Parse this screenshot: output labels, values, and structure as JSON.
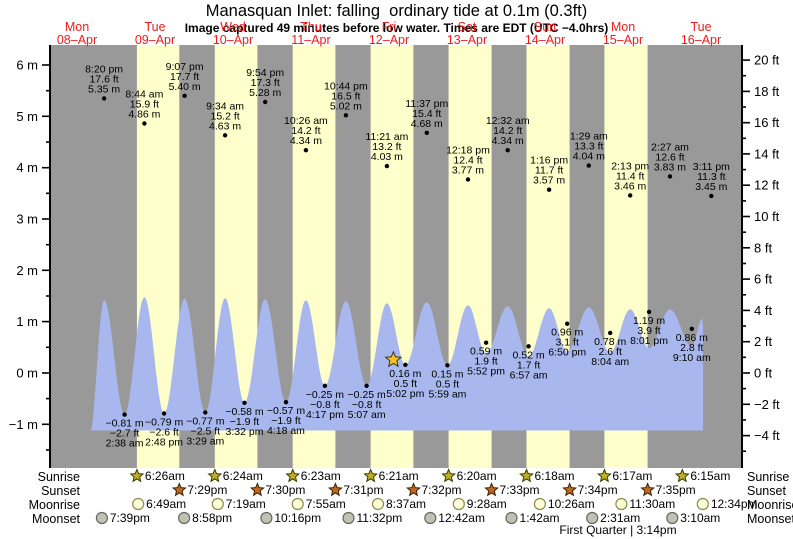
{
  "title": "Manasquan Inlet: falling  ordinary tide at 0.1m (0.3ft)",
  "subtitle": "Image captured 49 minutes before low water. Times are EDT (UTC −4.0hrs)",
  "colors": {
    "night_band": "#999999",
    "day_band": "#ffffcc",
    "tide_fill": "#a8b8ee",
    "day_label_red": "#ee1c1c",
    "axis_black": "#000000",
    "sunrise_star_fill": "#bfae2a",
    "sunset_star_fill": "#bf6a1f",
    "moonrise_fill": "#ffffd8",
    "moonrise_stroke": "#8a8a50",
    "moonset_fill": "#c2c2b2",
    "moonset_stroke": "#666666",
    "current_star_fill": "#f5c518"
  },
  "days": [
    {
      "weekday": "Mon",
      "date": "08–Apr"
    },
    {
      "weekday": "Tue",
      "date": "09–Apr"
    },
    {
      "weekday": "Wed",
      "date": "10–Apr"
    },
    {
      "weekday": "Thu",
      "date": "11–Apr"
    },
    {
      "weekday": "Fri",
      "date": "12–Apr"
    },
    {
      "weekday": "Sat",
      "date": "13–Apr"
    },
    {
      "weekday": "Sun",
      "date": "14–Apr"
    },
    {
      "weekday": "Mon",
      "date": "15–Apr"
    },
    {
      "weekday": "Tue",
      "date": "16–Apr"
    }
  ],
  "y_axis_left": {
    "unit": "m",
    "labels": [
      "6 m",
      "5 m",
      "4 m",
      "3 m",
      "2 m",
      "1 m",
      "0 m",
      "−1 m"
    ]
  },
  "y_axis_right": {
    "unit": "ft",
    "labels": [
      "20 ft",
      "18 ft",
      "16 ft",
      "14 ft",
      "12 ft",
      "10 ft",
      "8 ft",
      "6 ft",
      "4 ft",
      "2 ft",
      "0 ft",
      "−2 ft",
      "−4 ft"
    ]
  },
  "chart_data": {
    "type": "area",
    "title": "Manasquan Inlet: falling  ordinary tide at 0.1m (0.3ft)",
    "x_categories": [
      "Mon 08-Apr",
      "Tue 09-Apr",
      "Wed 10-Apr",
      "Thu 11-Apr",
      "Fri 12-Apr",
      "Sat 13-Apr",
      "Sun 14-Apr",
      "Mon 15-Apr",
      "Tue 16-Apr"
    ],
    "ylabel_left": "meters",
    "ylabel_right": "feet",
    "ylim_m": [
      -1.8,
      6.4
    ],
    "grid": false,
    "high_tides": [
      {
        "day": 0,
        "time": "8:20 pm",
        "ft": "17.6 ft",
        "m": "5.35 m",
        "value_m": 5.35
      },
      {
        "day": 1,
        "time": "8:44 am",
        "ft": "15.9 ft",
        "m": "4.86 m",
        "value_m": 4.86
      },
      {
        "day": 1,
        "time": "9:07 pm",
        "ft": "17.7 ft",
        "m": "5.40 m",
        "value_m": 5.4
      },
      {
        "day": 2,
        "time": "9:34 am",
        "ft": "15.2 ft",
        "m": "4.63 m",
        "value_m": 4.63
      },
      {
        "day": 2,
        "time": "9:54 pm",
        "ft": "17.3 ft",
        "m": "5.28 m",
        "value_m": 5.28
      },
      {
        "day": 3,
        "time": "10:26 am",
        "ft": "14.2 ft",
        "m": "4.34 m",
        "value_m": 4.34
      },
      {
        "day": 3,
        "time": "10:44 pm",
        "ft": "16.5 ft",
        "m": "5.02 m",
        "value_m": 5.02
      },
      {
        "day": 4,
        "time": "11:21 am",
        "ft": "13.2 ft",
        "m": "4.03 m",
        "value_m": 4.03
      },
      {
        "day": 4,
        "time": "11:37 pm",
        "ft": "15.4 ft",
        "m": "4.68 m",
        "value_m": 4.68
      },
      {
        "day": 5,
        "time": "12:18 pm",
        "ft": "12.4 ft",
        "m": "3.77 m",
        "value_m": 3.77
      },
      {
        "day": 6,
        "time": "12:32 am",
        "ft": "14.2 ft",
        "m": "4.34 m",
        "value_m": 4.34
      },
      {
        "day": 6,
        "time": "1:16 pm",
        "ft": "11.7 ft",
        "m": "3.57 m",
        "value_m": 3.57
      },
      {
        "day": 7,
        "time": "1:29 am",
        "ft": "13.3 ft",
        "m": "4.04 m",
        "value_m": 4.04
      },
      {
        "day": 7,
        "time": "2:13 pm",
        "ft": "11.4 ft",
        "m": "3.46 m",
        "value_m": 3.46
      },
      {
        "day": 8,
        "time": "2:27 am",
        "ft": "12.6 ft",
        "m": "3.83 m",
        "value_m": 3.83
      },
      {
        "day": 8,
        "time": "3:11 pm",
        "ft": "11.3 ft",
        "m": "3.45 m",
        "value_m": 3.45
      }
    ],
    "low_tides": [
      {
        "day": 1,
        "time": "2:38 am",
        "ft": "−2.7 ft",
        "m": "−0.81 m",
        "value_m": -0.81,
        "current": false
      },
      {
        "day": 1,
        "time": "2:48 pm",
        "ft": "−2.6 ft",
        "m": "−0.79 m",
        "value_m": -0.79,
        "current": false
      },
      {
        "day": 2,
        "time": "3:29 am",
        "ft": "−2.5 ft",
        "m": "−0.77 m",
        "value_m": -0.77,
        "current": false
      },
      {
        "day": 2,
        "time": "3:32 pm",
        "ft": "−1.9 ft",
        "m": "−0.58 m",
        "value_m": -0.58,
        "current": false
      },
      {
        "day": 3,
        "time": "4:18 am",
        "ft": "−1.9 ft",
        "m": "−0.57 m",
        "value_m": -0.57,
        "current": false
      },
      {
        "day": 3,
        "time": "4:17 pm",
        "ft": "−0.8 ft",
        "m": "−0.25 m",
        "value_m": -0.25,
        "current": false
      },
      {
        "day": 4,
        "time": "5:07 am",
        "ft": "−0.8 ft",
        "m": "−0.25 m",
        "value_m": -0.25,
        "current": false
      },
      {
        "day": 4,
        "time": "5:02 pm",
        "ft": "0.5 ft",
        "m": "0.16 m",
        "value_m": 0.16,
        "current": true
      },
      {
        "day": 5,
        "time": "5:59 am",
        "ft": "0.5 ft",
        "m": "0.15 m",
        "value_m": 0.15,
        "current": false
      },
      {
        "day": 5,
        "time": "5:52 pm",
        "ft": "1.9 ft",
        "m": "0.59 m",
        "value_m": 0.59,
        "current": false
      },
      {
        "day": 6,
        "time": "6:57 am",
        "ft": "1.7 ft",
        "m": "0.52 m",
        "value_m": 0.52,
        "current": false
      },
      {
        "day": 6,
        "time": "6:50 pm",
        "ft": "3.1 ft",
        "m": "0.96 m",
        "value_m": 0.96,
        "current": false
      },
      {
        "day": 7,
        "time": "8:04 am",
        "ft": "2.6 ft",
        "m": "0.78 m",
        "value_m": 0.78,
        "current": false
      },
      {
        "day": 7,
        "time": "8:01 pm",
        "ft": "3.9 ft",
        "m": "1.19 m",
        "value_m": 1.19,
        "current": false
      },
      {
        "day": 8,
        "time": "9:10 am",
        "ft": "2.8 ft",
        "m": "0.86 m",
        "value_m": 0.86,
        "current": false
      }
    ],
    "curve_extremes": [
      {
        "day": 0,
        "h": 15.9,
        "v": -1.2
      },
      {
        "day": 0,
        "h": 20.33,
        "v": 1.42
      },
      {
        "day": 1,
        "h": 2.63,
        "v": -0.81
      },
      {
        "day": 1,
        "h": 8.73,
        "v": 1.48
      },
      {
        "day": 1,
        "h": 14.8,
        "v": -0.79
      },
      {
        "day": 1,
        "h": 21.12,
        "v": 1.45
      },
      {
        "day": 2,
        "h": 3.48,
        "v": -0.77
      },
      {
        "day": 2,
        "h": 9.57,
        "v": 1.46
      },
      {
        "day": 2,
        "h": 15.53,
        "v": -0.58
      },
      {
        "day": 2,
        "h": 21.9,
        "v": 1.44
      },
      {
        "day": 3,
        "h": 4.3,
        "v": -0.57
      },
      {
        "day": 3,
        "h": 10.43,
        "v": 1.42
      },
      {
        "day": 3,
        "h": 16.28,
        "v": -0.25
      },
      {
        "day": 3,
        "h": 22.73,
        "v": 1.4
      },
      {
        "day": 4,
        "h": 5.12,
        "v": -0.25
      },
      {
        "day": 4,
        "h": 11.35,
        "v": 1.36
      },
      {
        "day": 4,
        "h": 17.03,
        "v": 0.16
      },
      {
        "day": 4,
        "h": 23.62,
        "v": 1.38
      },
      {
        "day": 5,
        "h": 5.98,
        "v": 0.15
      },
      {
        "day": 5,
        "h": 12.3,
        "v": 1.32
      },
      {
        "day": 5,
        "h": 17.87,
        "v": 0.38
      },
      {
        "day": 6,
        "h": 0.53,
        "v": 1.3
      },
      {
        "day": 6,
        "h": 6.95,
        "v": 0.32
      },
      {
        "day": 6,
        "h": 13.27,
        "v": 1.26
      },
      {
        "day": 6,
        "h": 18.83,
        "v": 0.42
      },
      {
        "day": 7,
        "h": 1.48,
        "v": 1.28
      },
      {
        "day": 7,
        "h": 8.07,
        "v": 0.4
      },
      {
        "day": 7,
        "h": 14.22,
        "v": 1.24
      },
      {
        "day": 7,
        "h": 20.02,
        "v": 0.48
      },
      {
        "day": 8,
        "h": 2.45,
        "v": 1.24
      },
      {
        "day": 8,
        "h": 9.17,
        "v": 0.52
      },
      {
        "day": 8,
        "h": 12.3,
        "v": 1.05
      },
      {
        "day": 8,
        "h": 12.66,
        "v": 0.92
      }
    ]
  },
  "astro": {
    "row_labels": [
      "Sunrise",
      "Sunset",
      "Moonrise",
      "Moonset"
    ],
    "sunrise": [
      {
        "day": 1,
        "time": "6:26am"
      },
      {
        "day": 2,
        "time": "6:24am"
      },
      {
        "day": 3,
        "time": "6:23am"
      },
      {
        "day": 4,
        "time": "6:21am"
      },
      {
        "day": 5,
        "time": "6:20am"
      },
      {
        "day": 6,
        "time": "6:18am"
      },
      {
        "day": 7,
        "time": "6:17am"
      },
      {
        "day": 8,
        "time": "6:15am"
      }
    ],
    "sunset": [
      {
        "day": 1,
        "time": "7:29pm"
      },
      {
        "day": 2,
        "time": "7:30pm"
      },
      {
        "day": 3,
        "time": "7:31pm"
      },
      {
        "day": 4,
        "time": "7:32pm"
      },
      {
        "day": 5,
        "time": "7:33pm"
      },
      {
        "day": 6,
        "time": "7:34pm"
      },
      {
        "day": 7,
        "time": "7:35pm"
      }
    ],
    "moonrise": [
      {
        "day": 1,
        "time": "6:49am"
      },
      {
        "day": 2,
        "time": "7:19am"
      },
      {
        "day": 3,
        "time": "7:55am"
      },
      {
        "day": 4,
        "time": "8:37am"
      },
      {
        "day": 5,
        "time": "9:28am"
      },
      {
        "day": 6,
        "time": "10:26am"
      },
      {
        "day": 7,
        "time": "11:30am"
      },
      {
        "day": 8,
        "time": "12:34pm"
      }
    ],
    "moonset": [
      {
        "day": 0,
        "time": "7:39pm"
      },
      {
        "day": 1,
        "time": "8:58pm"
      },
      {
        "day": 2,
        "time": "10:16pm"
      },
      {
        "day": 3,
        "time": "11:32pm"
      },
      {
        "day": 5,
        "time": "12:42am"
      },
      {
        "day": 6,
        "time": "1:42am"
      },
      {
        "day": 7,
        "time": "2:31am"
      },
      {
        "day": 8,
        "time": "3:10am"
      }
    ],
    "moon_phase": "First Quarter | 3:14pm"
  }
}
